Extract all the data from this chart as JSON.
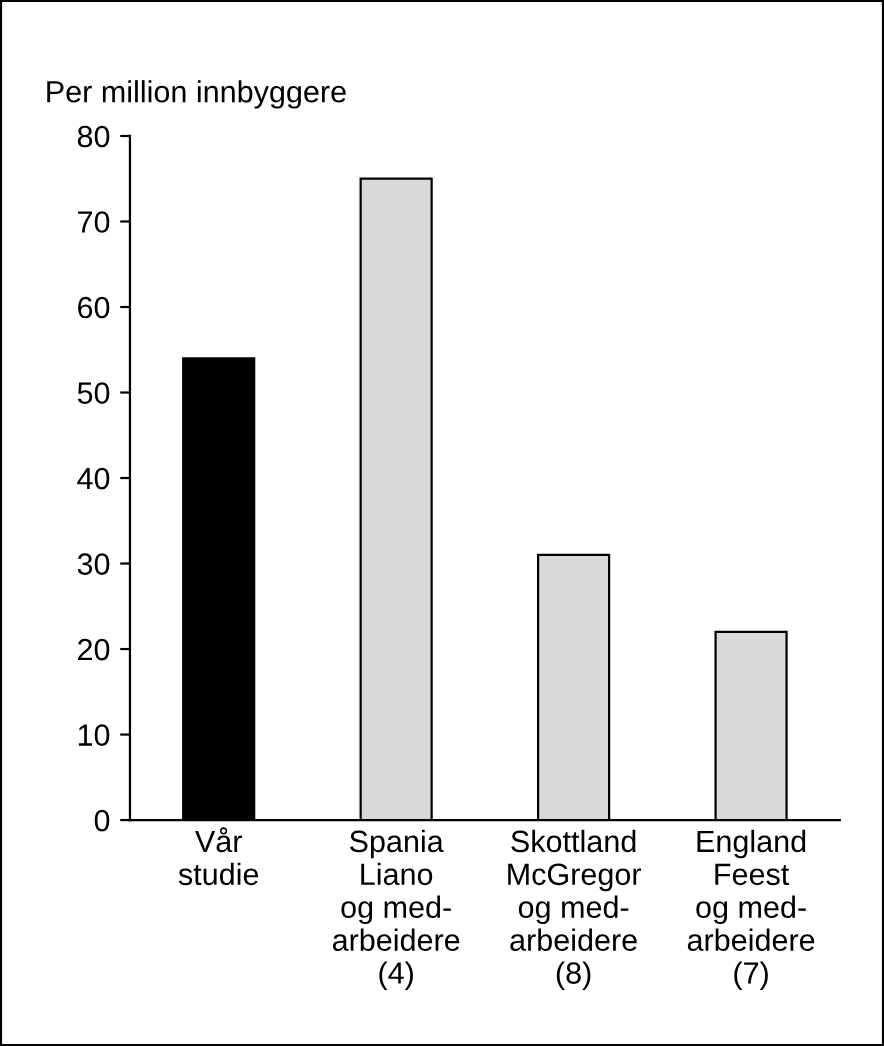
{
  "chart_data": {
    "type": "bar",
    "ylabel": "Per million innbyggere",
    "categories": [
      "Vår\nstudie",
      "Spania\nLiano\nog med-\narbeidere\n(4)",
      "Skottland\nMcGregor\nog med-\narbeidere\n(8)",
      "England\nFeest\nog med-\narbeidere\n(7)"
    ],
    "values": [
      54,
      75,
      31,
      22
    ],
    "colors": [
      "#000000",
      "#d9d9d9",
      "#d9d9d9",
      "#d9d9d9"
    ],
    "ylim": [
      0,
      80
    ],
    "yticks": [
      0,
      10,
      20,
      30,
      40,
      50,
      60,
      70,
      80
    ],
    "grid": false,
    "legend": false
  }
}
